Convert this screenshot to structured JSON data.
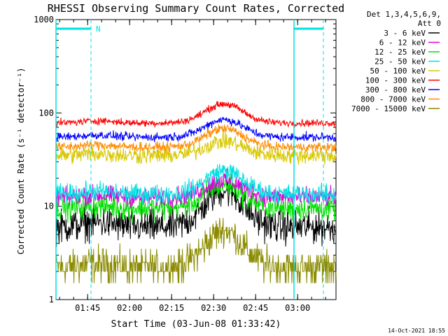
{
  "chart_data": {
    "type": "line",
    "title": "RHESSI Observing Summary Count Rates, Corrected",
    "xlabel": "Start Time (03-Jun-08 01:33:42)",
    "ylabel": "Corrected Count Rate (s⁻¹ detector⁻¹)",
    "yscale": "log",
    "ylim": [
      1,
      1000
    ],
    "xlim_minutes": [
      0,
      100
    ],
    "x_ticks": [
      {
        "min": 11.3,
        "label": "01:45"
      },
      {
        "min": 26.3,
        "label": "02:00"
      },
      {
        "min": 41.3,
        "label": "02:15"
      },
      {
        "min": 56.3,
        "label": "02:30"
      },
      {
        "min": 71.3,
        "label": "02:45"
      },
      {
        "min": 86.3,
        "label": "03:00"
      }
    ],
    "y_ticks": [
      {
        "v": 1,
        "label": "1"
      },
      {
        "v": 10,
        "label": "10"
      },
      {
        "v": 100,
        "label": "100"
      },
      {
        "v": 1000,
        "label": "1000"
      }
    ],
    "legend_header": [
      "Det 1,3,4,5,6,9,",
      "Att 0"
    ],
    "legend_position": "right",
    "series": [
      {
        "name": "3 - 6 keV",
        "color": "#000000",
        "base": 6.0,
        "peak": 15,
        "noise": 0.07
      },
      {
        "name": "6 - 12 keV",
        "color": "#e000e0",
        "base": 12.5,
        "peak": 19,
        "noise": 0.04
      },
      {
        "name": "12 - 25 keV",
        "color": "#00e000",
        "base": 9.5,
        "peak": 17,
        "noise": 0.05
      },
      {
        "name": "25 - 50 keV",
        "color": "#00e0e0",
        "base": 13.5,
        "peak": 24,
        "noise": 0.04
      },
      {
        "name": "50 - 100 keV",
        "color": "#d8c800",
        "base": 35,
        "peak": 50,
        "noise": 0.035
      },
      {
        "name": "100 - 300 keV",
        "color": "#ff0000",
        "base": 78,
        "peak": 125,
        "noise": 0.015
      },
      {
        "name": "300 - 800 keV",
        "color": "#0000ff",
        "base": 55,
        "peak": 85,
        "noise": 0.018
      },
      {
        "name": "800 - 7000 keV",
        "color": "#ff8c00",
        "base": 43,
        "peak": 68,
        "noise": 0.02
      },
      {
        "name": "7000 - 15000 keV",
        "color": "#8b8b00",
        "base": 2.2,
        "peak": 5.5,
        "noise": 0.25
      }
    ],
    "night_intervals_min": [
      [
        0,
        12.5
      ],
      [
        85,
        100
      ]
    ],
    "annotations": [
      "N"
    ],
    "timestamp": "14-Oct-2021 18:55"
  }
}
